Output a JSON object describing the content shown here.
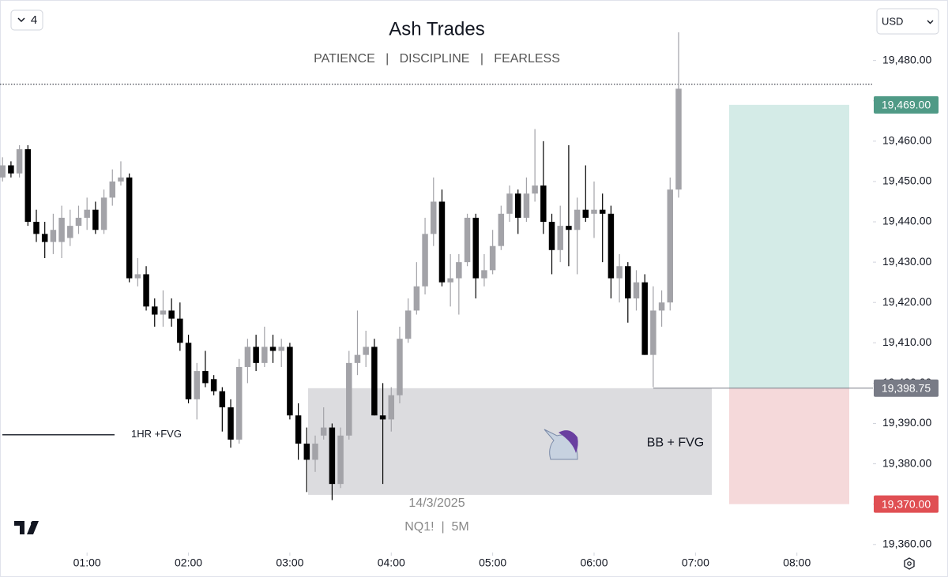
{
  "chart_data": {
    "type": "candlestick",
    "title": "Ash Trades",
    "subtitle": "PATIENCE   |   DISCIPLINE   |   FEARLESS",
    "toolbar": {
      "selector": "4",
      "currency": "USD"
    },
    "watermark": {
      "date": "14/3/2025",
      "symbol": "NQ1!  |  5M"
    },
    "up_color": "#a3a3a8",
    "down_color": "#000000",
    "open": [
      19451,
      19454,
      19452,
      19458,
      19440,
      19437,
      19435,
      19435,
      19436,
      19439,
      19441,
      19443,
      19438,
      19446,
      19450,
      19451,
      19426,
      19427,
      19419,
      19417,
      19418,
      19416,
      19410,
      19396,
      19403,
      19401,
      19398,
      19394,
      19386,
      19404,
      19409,
      19405,
      19409,
      19408,
      19409,
      19392,
      19385,
      19381,
      19387,
      19389,
      19375,
      19387,
      19405,
      19407,
      19409,
      19392,
      19391,
      19397,
      19411,
      19418,
      19424,
      19437,
      19445,
      19425,
      19426,
      19430,
      19441,
      19426,
      19428,
      19434,
      19442,
      19447,
      19441,
      19447,
      19449,
      19440,
      19433,
      19439,
      19438,
      19443,
      19442,
      19443,
      19442,
      19426,
      19429,
      19421,
      19425,
      19407,
      19418,
      19420,
      19448
    ],
    "high": [
      19456,
      19455,
      19459,
      19459,
      19443,
      19440,
      19442,
      19444,
      19443,
      19444,
      19446,
      19445,
      19448,
      19453,
      19455,
      19452,
      19431,
      19429,
      19421,
      19423,
      19421,
      19420,
      19412,
      19405,
      19408,
      19402,
      19399,
      19396,
      19406,
      19411,
      19412,
      19414,
      19412,
      19411,
      19410,
      19395,
      19389,
      19387,
      19394,
      19390,
      19389,
      19408,
      19418,
      19413,
      19411,
      19400,
      19399,
      19414,
      19421,
      19430,
      19441,
      19451,
      19448,
      19432,
      19432,
      19442,
      19442,
      19432,
      19438,
      19444,
      19449,
      19448,
      19451,
      19463,
      19460,
      19442,
      19444,
      19459,
      19446,
      19454,
      19450,
      19447,
      19444,
      19432,
      19430,
      19428,
      19427,
      19424,
      19423,
      19451,
      19487
    ],
    "low": [
      19450,
      19451,
      19451,
      19439,
      19435,
      19431,
      19432,
      19431,
      19434,
      19437,
      19438,
      19437,
      19437,
      19444,
      19449,
      19425,
      19424,
      19418,
      19414,
      19414,
      19414,
      19408,
      19395,
      19391,
      19399,
      19397,
      19388,
      19384,
      19385,
      19400,
      19403,
      19404,
      19405,
      19404,
      19391,
      19381,
      19373,
      19378,
      19386,
      19371,
      19374,
      19386,
      19402,
      19404,
      19392,
      19375,
      19388,
      19395,
      19410,
      19417,
      19422,
      19434,
      19424,
      19419,
      19417,
      19429,
      19421,
      19424,
      19427,
      19433,
      19440,
      19437,
      19440,
      19445,
      19437,
      19427,
      19430,
      19429,
      19427,
      19440,
      19436,
      19430,
      19421,
      19420,
      19415,
      19418,
      19407,
      19399,
      19414,
      19418,
      19446
    ],
    "close": [
      19454,
      19452,
      19458,
      19440,
      19437,
      19435,
      19438,
      19441,
      19439,
      19441,
      19443,
      19438,
      19446,
      19450,
      19451,
      19426,
      19427,
      19419,
      19417,
      19418,
      19416,
      19410,
      19396,
      19403,
      19400,
      19398,
      19394,
      19386,
      19404,
      19409,
      19405,
      19409,
      19408,
      19409,
      19392,
      19385,
      19381,
      19385,
      19389,
      19375,
      19387,
      19405,
      19407,
      19409,
      19392,
      19391,
      19397,
      19411,
      19418,
      19424,
      19437,
      19445,
      19425,
      19426,
      19430,
      19441,
      19426,
      19428,
      19434,
      19442,
      19447,
      19441,
      19447,
      19449,
      19440,
      19433,
      19439,
      19438,
      19443,
      19441,
      19443,
      19442,
      19426,
      19429,
      19421,
      19425,
      19407,
      19418,
      19420,
      19448,
      19473
    ],
    "xlim": [
      -0.3,
      103
    ],
    "xticks": [
      {
        "value": 10,
        "label": "01:00"
      },
      {
        "value": 22,
        "label": "02:00"
      },
      {
        "value": 34,
        "label": "03:00"
      },
      {
        "value": 46,
        "label": "04:00"
      },
      {
        "value": 58,
        "label": "05:00"
      },
      {
        "value": 70,
        "label": "06:00"
      },
      {
        "value": 82,
        "label": "07:00"
      },
      {
        "value": 94,
        "label": "08:00"
      }
    ],
    "ylim": [
      19358,
      19495
    ],
    "yticks": [
      {
        "value": 19360,
        "label": "19,360.00"
      },
      {
        "value": 19370,
        "label": "19,370.00"
      },
      {
        "value": 19380,
        "label": "19,380.00"
      },
      {
        "value": 19390,
        "label": "19,390.00"
      },
      {
        "value": 19400,
        "label": "19,400.00"
      },
      {
        "value": 19410,
        "label": "19,410.00"
      },
      {
        "value": 19420,
        "label": "19,420.00"
      },
      {
        "value": 19430,
        "label": "19,430.00"
      },
      {
        "value": 19440,
        "label": "19,440.00"
      },
      {
        "value": 19450,
        "label": "19,450.00"
      },
      {
        "value": 19460,
        "label": "19,460.00"
      },
      {
        "value": 19470,
        "label": "19,470.00"
      },
      {
        "value": 19480,
        "label": "19,480.00"
      }
    ],
    "price_levels": [
      {
        "value": 19469,
        "label": "19,469.00",
        "color": "#4f9a86"
      },
      {
        "value": 19398.75,
        "label": "19,398.75",
        "color": "#787b86"
      },
      {
        "value": 19370,
        "label": "19,370.00",
        "color": "#e04f53"
      }
    ],
    "zone": {
      "label": "BB + FVG",
      "top": 19398.75,
      "bottom": 19372.3,
      "color": "#dcdcdf"
    },
    "level_line": {
      "label": "1HR +FVG",
      "value": 19387.2
    },
    "dotted_line": 19474.1,
    "position": {
      "target": 19469,
      "entry": 19398.75,
      "stop": 19370,
      "profit_color": "#d4ebe7",
      "loss_color": "#f5d9da"
    }
  }
}
